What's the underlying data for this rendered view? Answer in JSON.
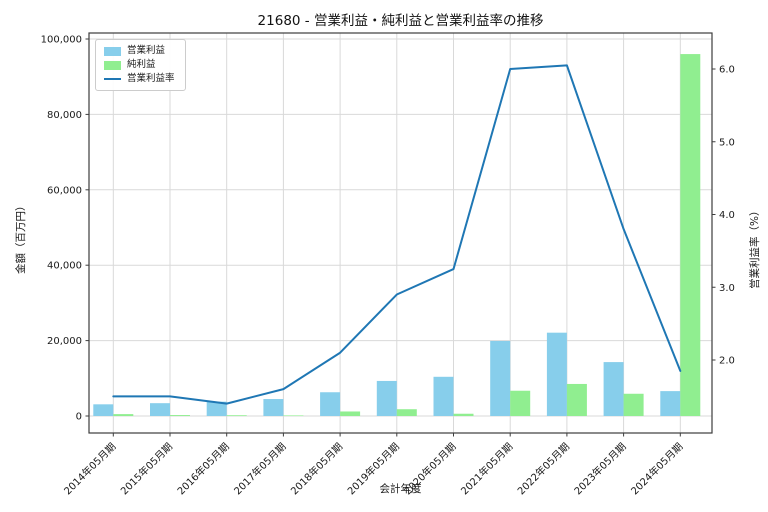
{
  "chart_data": {
    "type": "combo",
    "title": "21680 - 営業利益・純利益と営業利益率の推移",
    "xlabel": "会計年度",
    "ylabel_left": "金額（百万円）",
    "ylabel_right": "営業利益率（%）",
    "categories": [
      "2014年05月期",
      "2015年05月期",
      "2016年05月期",
      "2017年05月期",
      "2018年05月期",
      "2019年05月期",
      "2020年05月期",
      "2021年05月期",
      "2022年05月期",
      "2023年05月期",
      "2024年05月期"
    ],
    "series": [
      {
        "key": "operating-profit",
        "name": "営業利益",
        "type": "bar",
        "axis": "left",
        "color": "#87CEEB",
        "values": [
          3100,
          3400,
          3800,
          4500,
          6300,
          9300,
          10400,
          19900,
          22100,
          14300,
          6600
        ]
      },
      {
        "key": "net-profit",
        "name": "純利益",
        "type": "bar",
        "axis": "left",
        "color": "#90EE90",
        "values": [
          500,
          250,
          200,
          150,
          1200,
          1800,
          600,
          6700,
          8500,
          5900,
          96000
        ]
      },
      {
        "key": "operating-margin",
        "name": "営業利益率",
        "type": "line",
        "axis": "right",
        "color": "#1f77b4",
        "values": [
          1.5,
          1.5,
          1.4,
          1.6,
          2.1,
          2.9,
          3.25,
          6.0,
          6.05,
          3.8,
          1.85
        ]
      }
    ],
    "y_left": {
      "min": 0,
      "max": 100000,
      "ticks": [
        0,
        20000,
        40000,
        60000,
        80000,
        100000
      ]
    },
    "y_right": {
      "ticks": [
        2.0,
        3.0,
        4.0,
        5.0,
        6.0
      ]
    },
    "legend_position": "upper-left",
    "grid": true,
    "colors": {
      "grid": "#d9d9d9",
      "spine": "#3d3d3d",
      "text": "#1a1a1a"
    }
  }
}
